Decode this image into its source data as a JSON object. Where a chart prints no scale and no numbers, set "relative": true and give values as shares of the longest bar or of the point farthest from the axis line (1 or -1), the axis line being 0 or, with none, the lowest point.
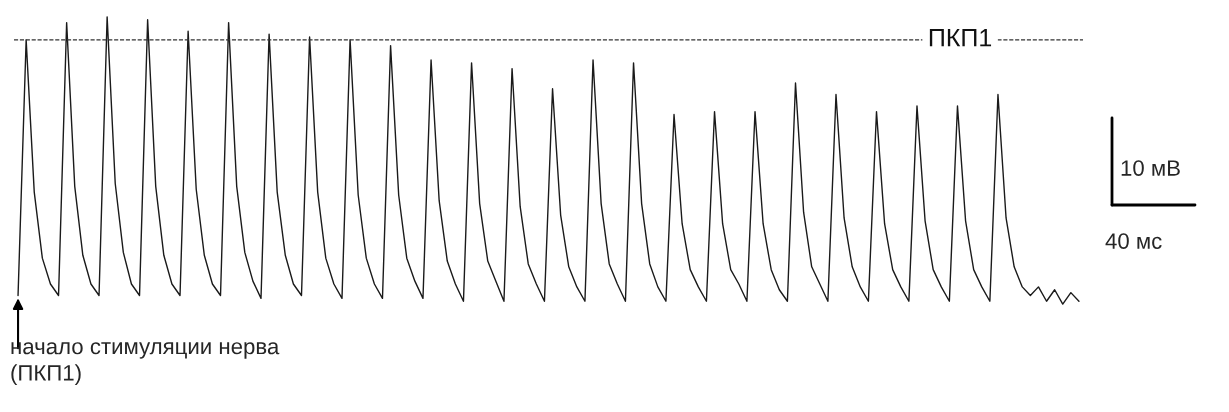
{
  "chart_data": {
    "type": "line",
    "relative": true,
    "categories": [
      null,
      null,
      null,
      null,
      null,
      null,
      null,
      null,
      null,
      null,
      null,
      null,
      null,
      null,
      null,
      null,
      null,
      null,
      null,
      null,
      null,
      null,
      null,
      null,
      null,
      null,
      null,
      null,
      null,
      null,
      null,
      null,
      null,
      null,
      null,
      null,
      null,
      null,
      null,
      null,
      null,
      null,
      null,
      null,
      null,
      null,
      null,
      null,
      null,
      null,
      null,
      null,
      null,
      null,
      null,
      null,
      null,
      null,
      null,
      null,
      null,
      null,
      null,
      null,
      null,
      null,
      null,
      null,
      null,
      null,
      null,
      null,
      null,
      null,
      null,
      null,
      null,
      null,
      null,
      null,
      null,
      null,
      null,
      null,
      null,
      null,
      null,
      null,
      null,
      null,
      null,
      null,
      null,
      null,
      null,
      null,
      null,
      null,
      null,
      null,
      null,
      null,
      null,
      null,
      null,
      null,
      null,
      null,
      null,
      null,
      null,
      null,
      null,
      null,
      null,
      null,
      null,
      null,
      null,
      null,
      null,
      null,
      null,
      null,
      null,
      null,
      null,
      null,
      null,
      null,
      null,
      null
    ],
    "series": [
      {
        "color": "#1a1a1a",
        "values": [
          0.03,
          0.92,
          0.39,
          0.16,
          0.07,
          0.03,
          0.98,
          0.41,
          0.17,
          0.07,
          0.03,
          1.0,
          0.42,
          0.18,
          0.07,
          0.03,
          0.99,
          0.41,
          0.17,
          0.07,
          0.03,
          0.95,
          0.4,
          0.17,
          0.07,
          0.03,
          0.98,
          0.41,
          0.18,
          0.08,
          0.02,
          0.94,
          0.39,
          0.17,
          0.07,
          0.03,
          0.93,
          0.39,
          0.16,
          0.07,
          0.02,
          0.92,
          0.38,
          0.16,
          0.07,
          0.02,
          0.9,
          0.38,
          0.16,
          0.08,
          0.02,
          0.85,
          0.36,
          0.15,
          0.07,
          0.01,
          0.84,
          0.35,
          0.15,
          0.08,
          0.01,
          0.82,
          0.34,
          0.14,
          0.07,
          0.01,
          0.75,
          0.31,
          0.13,
          0.06,
          0.01,
          0.85,
          0.35,
          0.14,
          0.07,
          0.01,
          0.84,
          0.35,
          0.14,
          0.06,
          0.01,
          0.66,
          0.28,
          0.12,
          0.06,
          0.01,
          0.67,
          0.28,
          0.12,
          0.07,
          0.01,
          0.67,
          0.28,
          0.12,
          0.05,
          0.01,
          0.77,
          0.32,
          0.13,
          0.07,
          0.01,
          0.73,
          0.3,
          0.13,
          0.06,
          0.01,
          0.67,
          0.28,
          0.12,
          0.06,
          0.01,
          0.69,
          0.29,
          0.12,
          0.06,
          0.01,
          0.69,
          0.29,
          0.12,
          0.06,
          0.01,
          0.73,
          0.3,
          0.13,
          0.06,
          0.03,
          0.06,
          0.01,
          0.05,
          0.0,
          0.04,
          0.01
        ]
      }
    ],
    "ref_lines": [
      {
        "axis": "y",
        "value": 0.92,
        "label": "ПКП1",
        "color": "#333333",
        "line_style": "dashed"
      }
    ],
    "annotations": [
      "начало стимуляции нерва\n(ПКП1)",
      "10 мВ",
      "40 мс"
    ]
  }
}
